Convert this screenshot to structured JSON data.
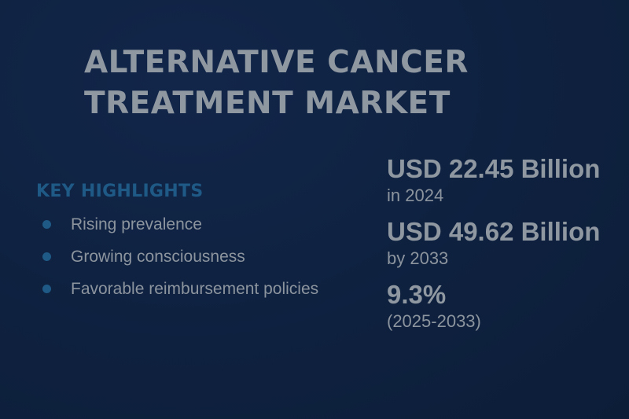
{
  "title": {
    "line1": "ALTERNATIVE CANCER",
    "line2": "TREATMENT MARKET"
  },
  "highlights": {
    "heading": "KEY HIGHLIGHTS",
    "items": [
      "Rising prevalence",
      "Growing consciousness",
      "Favorable reimbursement policies"
    ]
  },
  "stats": [
    {
      "value": "USD 22.45 Billion",
      "label": "in 2024"
    },
    {
      "value": "USD 49.62 Billion",
      "label": "by 2033"
    },
    {
      "value": "9.3%",
      "label": "(2025-2033)"
    }
  ],
  "colors": {
    "background": "#0e213f",
    "accent": "#1f5a86",
    "text": "#8f97a1"
  }
}
